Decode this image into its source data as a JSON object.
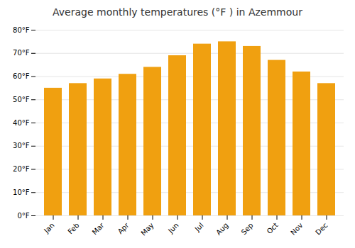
{
  "chart_data": {
    "type": "bar",
    "title": "Average monthly temperatures (°F ) in Azemmour",
    "categories": [
      "Jan",
      "Feb",
      "Mar",
      "Apr",
      "May",
      "Jun",
      "Jul",
      "Aug",
      "Sep",
      "Oct",
      "Nov",
      "Dec"
    ],
    "values": [
      55,
      57,
      59,
      61,
      64,
      69,
      74,
      75,
      73,
      67,
      62,
      57
    ],
    "color": "#F0A010",
    "ylim": [
      0,
      80
    ],
    "yticks": [
      {
        "value": 0,
        "label": "0°F"
      },
      {
        "value": 10,
        "label": "10°F"
      },
      {
        "value": 20,
        "label": "20°F"
      },
      {
        "value": 30,
        "label": "30°F"
      },
      {
        "value": 40,
        "label": "40°F"
      },
      {
        "value": 50,
        "label": "50°F"
      },
      {
        "value": 60,
        "label": "60°F"
      },
      {
        "value": 70,
        "label": "70°F"
      },
      {
        "value": 80,
        "label": "80°F"
      }
    ],
    "grid": true
  }
}
